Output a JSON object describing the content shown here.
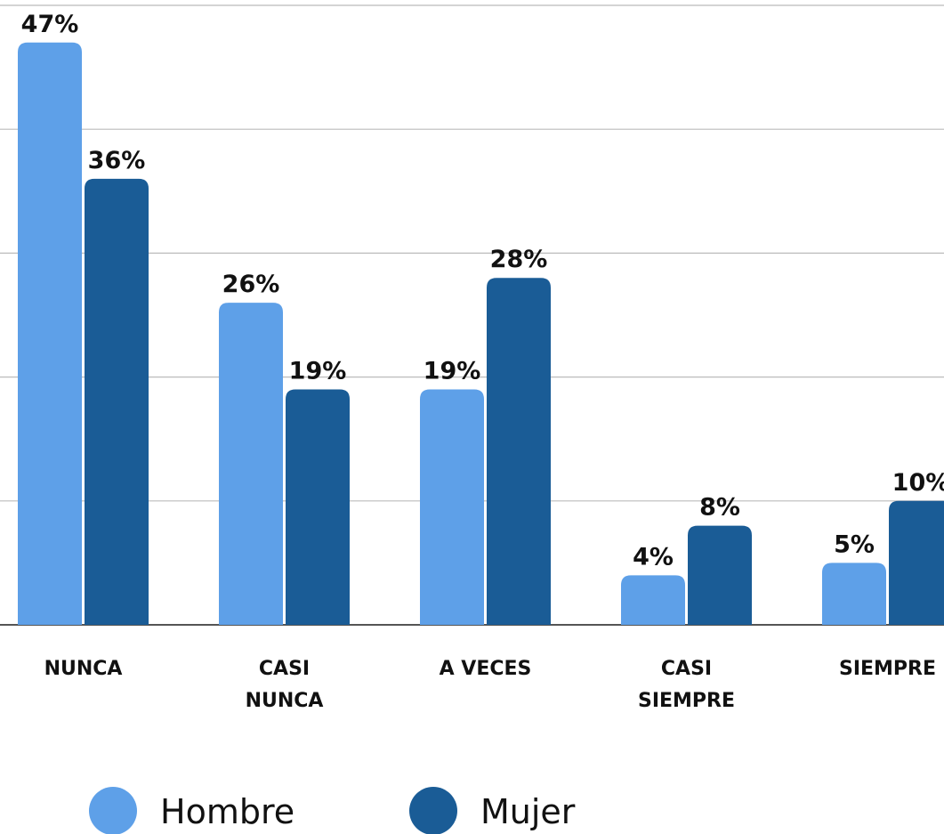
{
  "chart_data": {
    "type": "bar",
    "categories": [
      "NUNCA",
      "CASI\nNUNCA",
      "A VECES",
      "CASI\nSIEMPRE",
      "SIEMPRE"
    ],
    "series": [
      {
        "name": "Hombre",
        "color": "#5ea0e8",
        "values": [
          47,
          26,
          19,
          4,
          5
        ],
        "value_labels": [
          "47%",
          "26%",
          "19%",
          "4%",
          "5%"
        ]
      },
      {
        "name": "Mujer",
        "color": "#1a5c96",
        "values": [
          36,
          19,
          28,
          8,
          10
        ],
        "value_labels": [
          "36%",
          "19%",
          "28%",
          "8%",
          "10%"
        ]
      }
    ],
    "ylim": [
      0,
      50
    ],
    "yticks": [
      0,
      10,
      20,
      30,
      40,
      50
    ],
    "grid": true
  }
}
